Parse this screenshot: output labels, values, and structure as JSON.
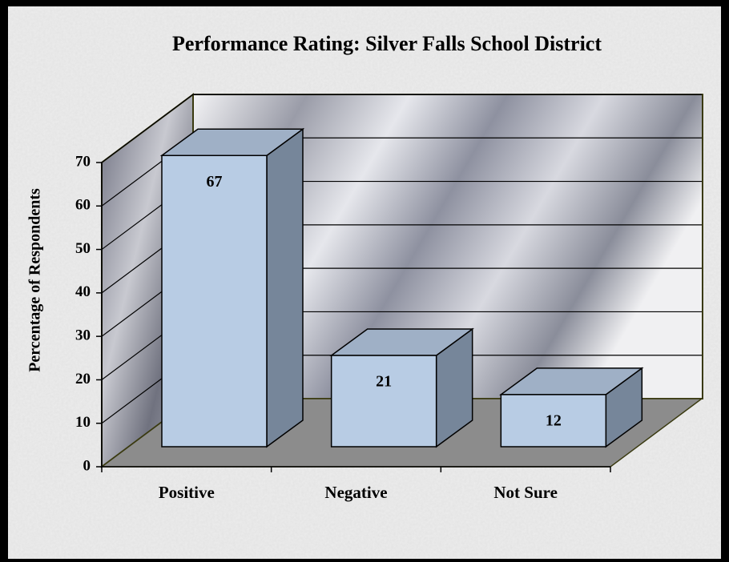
{
  "chart_data": {
    "type": "bar",
    "title": "Performance Rating: Silver Falls School District",
    "ylabel": "Percentage of Respondents",
    "categories": [
      "Positive",
      "Negative",
      "Not Sure"
    ],
    "values": [
      67,
      21,
      12
    ],
    "color": "#b8cce4",
    "ylim": [
      0,
      70
    ],
    "yticks": [
      0,
      10,
      20,
      30,
      40,
      50,
      60,
      70
    ],
    "grid": true
  }
}
